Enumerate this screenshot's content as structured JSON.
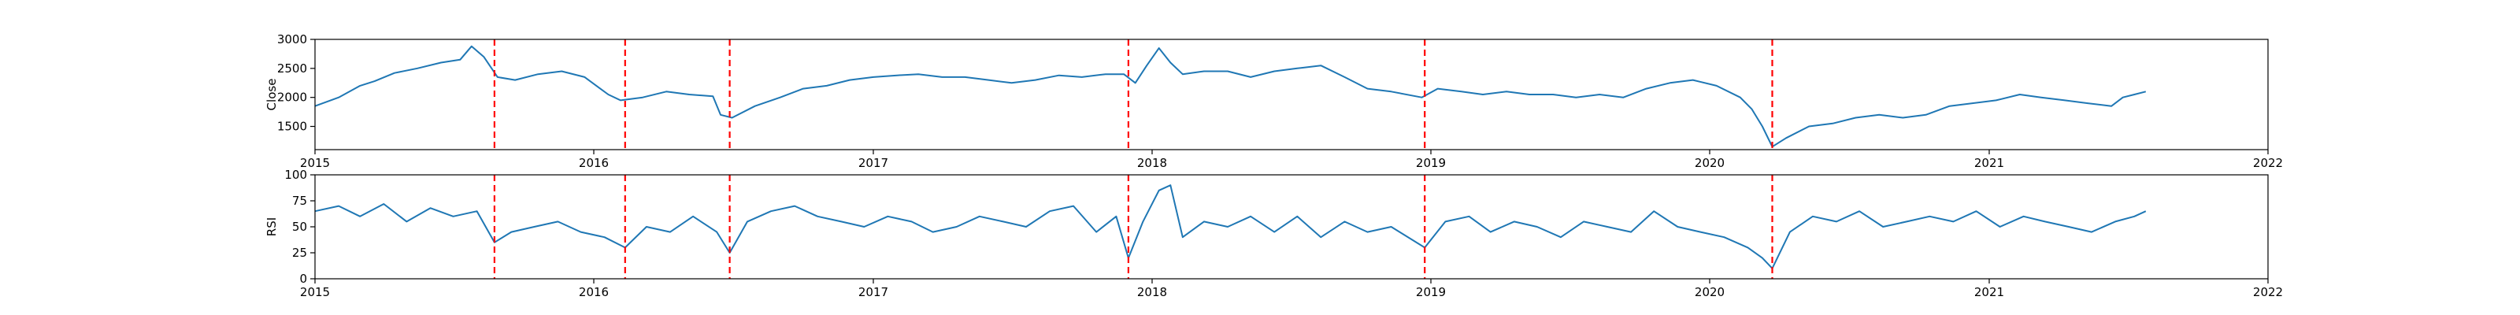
{
  "chart_data": [
    {
      "type": "line",
      "ylabel": "Close",
      "xlim": [
        "2015-01-01",
        "2022-01-01"
      ],
      "ylim": [
        1100,
        3000
      ],
      "x_ticks": [
        "2015",
        "2016",
        "2017",
        "2018",
        "2019",
        "2020",
        "2021",
        "2022"
      ],
      "y_ticks": [
        1500,
        2000,
        2500,
        3000
      ],
      "line_color": "#1f77b4",
      "series": [
        {
          "x": [
            "2015-01-01",
            "2015-02-01",
            "2015-03-01",
            "2015-03-20",
            "2015-04-15",
            "2015-05-15",
            "2015-06-15",
            "2015-07-10",
            "2015-07-25",
            "2015-08-10",
            "2015-08-28",
            "2015-09-20",
            "2015-10-20",
            "2015-11-20",
            "2015-12-20",
            "2016-01-20",
            "2016-02-05",
            "2016-03-05",
            "2016-04-05",
            "2016-05-05",
            "2016-06-05",
            "2016-06-15",
            "2016-06-30",
            "2016-07-30",
            "2016-09-01",
            "2016-10-01",
            "2016-11-01",
            "2016-12-01",
            "2017-01-01",
            "2017-02-01",
            "2017-03-01",
            "2017-04-01",
            "2017-05-01",
            "2017-06-01",
            "2017-07-01",
            "2017-08-01",
            "2017-09-01",
            "2017-10-01",
            "2017-11-01",
            "2017-11-25",
            "2017-12-10",
            "2017-12-25",
            "2018-01-10",
            "2018-01-25",
            "2018-02-10",
            "2018-03-10",
            "2018-04-10",
            "2018-05-10",
            "2018-06-10",
            "2018-07-10",
            "2018-08-10",
            "2018-09-10",
            "2018-10-10",
            "2018-11-10",
            "2018-12-20",
            "2019-01-10",
            "2019-02-10",
            "2019-03-10",
            "2019-04-10",
            "2019-05-10",
            "2019-06-10",
            "2019-07-10",
            "2019-08-10",
            "2019-09-10",
            "2019-10-10",
            "2019-11-10",
            "2019-12-10",
            "2020-01-10",
            "2020-02-10",
            "2020-02-25",
            "2020-03-10",
            "2020-03-23",
            "2020-04-10",
            "2020-05-10",
            "2020-06-10",
            "2020-07-10",
            "2020-08-10",
            "2020-09-10",
            "2020-10-10",
            "2020-11-10",
            "2020-12-10",
            "2021-01-10",
            "2021-02-10",
            "2021-03-10",
            "2021-04-10",
            "2021-05-10",
            "2021-06-10",
            "2021-06-25",
            "2021-07-10",
            "2021-07-25"
          ],
          "values": [
            1850,
            2000,
            2200,
            2280,
            2420,
            2500,
            2600,
            2650,
            2880,
            2700,
            2350,
            2300,
            2400,
            2450,
            2350,
            2050,
            1950,
            2000,
            2100,
            2050,
            2020,
            1700,
            1650,
            1850,
            2000,
            2150,
            2200,
            2300,
            2350,
            2380,
            2400,
            2350,
            2350,
            2300,
            2250,
            2300,
            2380,
            2350,
            2400,
            2400,
            2250,
            2550,
            2850,
            2600,
            2400,
            2450,
            2450,
            2350,
            2450,
            2500,
            2550,
            2350,
            2150,
            2100,
            2000,
            2150,
            2100,
            2050,
            2100,
            2050,
            2050,
            2000,
            2050,
            2000,
            2150,
            2250,
            2300,
            2200,
            2000,
            1800,
            1500,
            1150,
            1300,
            1500,
            1550,
            1650,
            1700,
            1650,
            1700,
            1850,
            1900,
            1950,
            2050,
            2000,
            1950,
            1900,
            1850,
            2000,
            2050,
            2100
          ]
        }
      ],
      "markers": [
        "2015-08-24",
        "2016-02-11",
        "2016-06-27",
        "2017-12-01",
        "2018-12-24",
        "2020-03-23"
      ],
      "marker_color": "#ff0000",
      "grid": false
    },
    {
      "type": "line",
      "ylabel": "RSI",
      "xlim": [
        "2015-01-01",
        "2022-01-01"
      ],
      "ylim": [
        0,
        100
      ],
      "x_ticks": [
        "2015",
        "2016",
        "2017",
        "2018",
        "2019",
        "2020",
        "2021",
        "2022"
      ],
      "y_ticks": [
        0,
        25,
        50,
        75,
        100
      ],
      "line_color": "#1f77b4",
      "series": [
        {
          "x": [
            "2015-01-01",
            "2015-02-01",
            "2015-03-01",
            "2015-04-01",
            "2015-05-01",
            "2015-06-01",
            "2015-07-01",
            "2015-08-01",
            "2015-08-24",
            "2015-09-15",
            "2015-10-15",
            "2015-11-15",
            "2015-12-15",
            "2016-01-15",
            "2016-02-11",
            "2016-03-10",
            "2016-04-10",
            "2016-05-10",
            "2016-06-10",
            "2016-06-27",
            "2016-07-20",
            "2016-08-20",
            "2016-09-20",
            "2016-10-20",
            "2016-11-20",
            "2016-12-20",
            "2017-01-20",
            "2017-02-20",
            "2017-03-20",
            "2017-04-20",
            "2017-05-20",
            "2017-06-20",
            "2017-07-20",
            "2017-08-20",
            "2017-09-20",
            "2017-10-20",
            "2017-11-15",
            "2017-12-01",
            "2017-12-20",
            "2018-01-10",
            "2018-01-25",
            "2018-02-10",
            "2018-03-10",
            "2018-04-10",
            "2018-05-10",
            "2018-06-10",
            "2018-07-10",
            "2018-08-10",
            "2018-09-10",
            "2018-10-10",
            "2018-11-10",
            "2018-12-24",
            "2019-01-20",
            "2019-02-20",
            "2019-03-20",
            "2019-04-20",
            "2019-05-20",
            "2019-06-20",
            "2019-07-20",
            "2019-08-20",
            "2019-09-20",
            "2019-10-20",
            "2019-11-20",
            "2019-12-20",
            "2020-01-20",
            "2020-02-20",
            "2020-03-10",
            "2020-03-23",
            "2020-04-15",
            "2020-05-15",
            "2020-06-15",
            "2020-07-15",
            "2020-08-15",
            "2020-09-15",
            "2020-10-15",
            "2020-11-15",
            "2020-12-15",
            "2021-01-15",
            "2021-02-15",
            "2021-03-15",
            "2021-04-15",
            "2021-05-15",
            "2021-06-15",
            "2021-07-10",
            "2021-07-25"
          ],
          "values": [
            65,
            70,
            60,
            72,
            55,
            68,
            60,
            65,
            35,
            45,
            50,
            55,
            45,
            40,
            30,
            50,
            45,
            60,
            45,
            25,
            55,
            65,
            70,
            60,
            55,
            50,
            60,
            55,
            45,
            50,
            60,
            55,
            50,
            65,
            70,
            45,
            60,
            20,
            55,
            85,
            90,
            40,
            55,
            50,
            60,
            45,
            60,
            40,
            55,
            45,
            50,
            30,
            55,
            60,
            45,
            55,
            50,
            40,
            55,
            50,
            45,
            65,
            50,
            45,
            40,
            30,
            20,
            10,
            45,
            60,
            55,
            65,
            50,
            55,
            60,
            55,
            65,
            50,
            60,
            55,
            50,
            45,
            55,
            60,
            65
          ]
        }
      ],
      "markers": [
        "2015-08-24",
        "2016-02-11",
        "2016-06-27",
        "2017-12-01",
        "2018-12-24",
        "2020-03-23"
      ],
      "marker_color": "#ff0000",
      "grid": false
    }
  ]
}
